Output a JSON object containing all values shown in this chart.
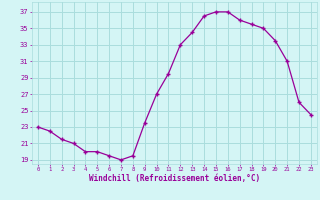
{
  "x": [
    0,
    1,
    2,
    3,
    4,
    5,
    6,
    7,
    8,
    9,
    10,
    11,
    12,
    13,
    14,
    15,
    16,
    17,
    18,
    19,
    20,
    21,
    22,
    23
  ],
  "y": [
    23.0,
    22.5,
    21.5,
    21.0,
    20.0,
    20.0,
    19.5,
    19.0,
    19.5,
    23.5,
    27.0,
    29.5,
    33.0,
    34.5,
    36.5,
    37.0,
    37.0,
    36.0,
    35.5,
    35.0,
    33.5,
    31.0,
    26.0,
    24.5
  ],
  "line_color": "#990099",
  "marker": "+",
  "bg_color": "#d4f5f5",
  "grid_color": "#aadddd",
  "xlabel": "Windchill (Refroidissement éolien,°C)",
  "ylabel_ticks": [
    19,
    21,
    23,
    25,
    27,
    29,
    31,
    33,
    35,
    37
  ],
  "xlim": [
    -0.5,
    23.5
  ],
  "ylim": [
    18.5,
    38.2
  ],
  "tick_color": "#990099",
  "label_color": "#990099",
  "font_family": "monospace"
}
